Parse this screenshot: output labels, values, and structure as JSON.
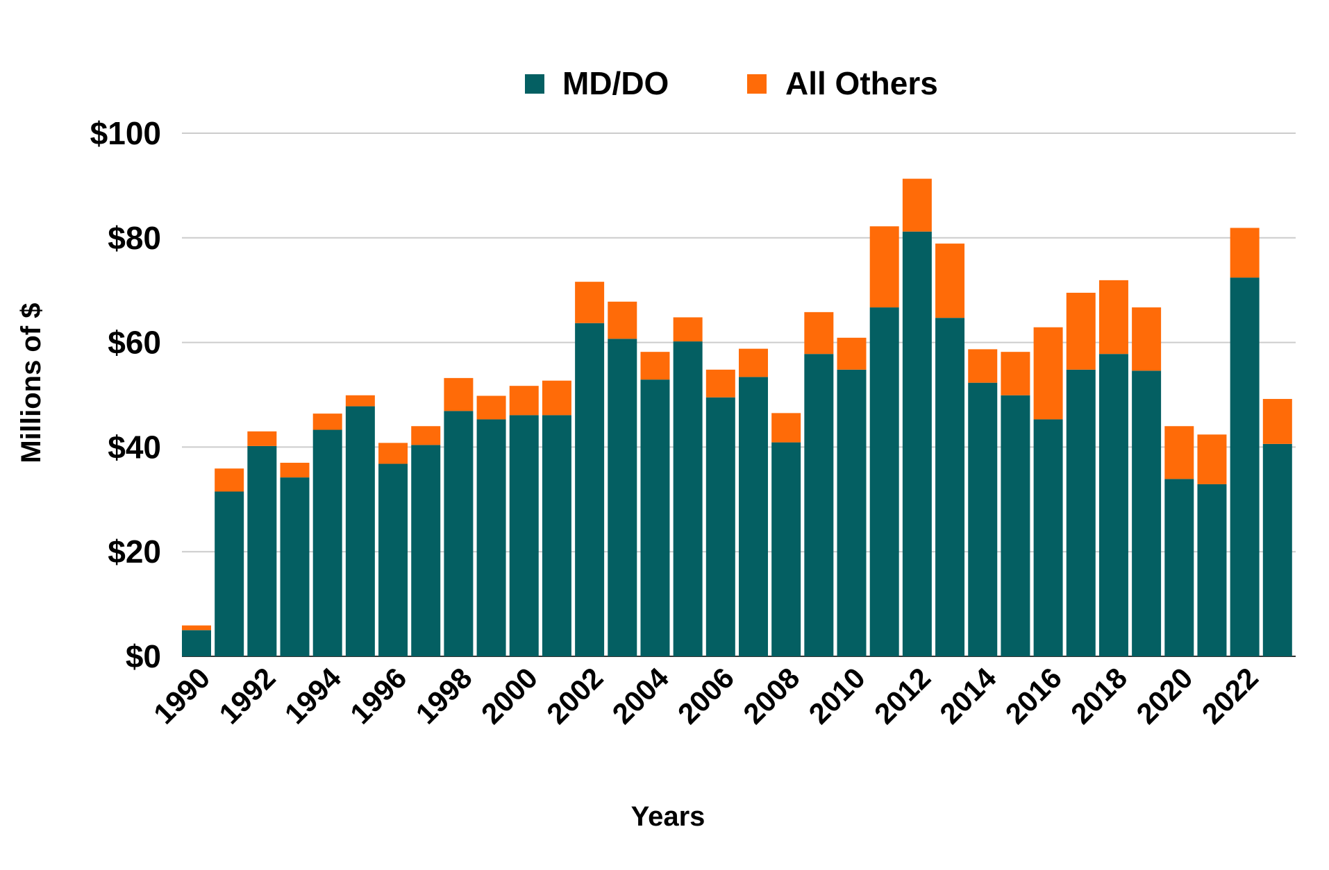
{
  "chart_data": {
    "type": "bar",
    "stacked": true,
    "title": "",
    "xlabel": "Years",
    "ylabel": "Millions of $",
    "ylim": [
      0,
      100
    ],
    "yticks": [
      "$0",
      "$20",
      "$40",
      "$60",
      "$80",
      "$100"
    ],
    "ytick_values": [
      0,
      20,
      40,
      60,
      80,
      100
    ],
    "grid": true,
    "legend_position": "top-center",
    "categories": [
      1990,
      1991,
      1992,
      1993,
      1994,
      1995,
      1996,
      1997,
      1998,
      1999,
      2000,
      2001,
      2002,
      2003,
      2004,
      2005,
      2006,
      2007,
      2008,
      2009,
      2010,
      2011,
      2012,
      2013,
      2014,
      2015,
      2016,
      2017,
      2018,
      2019,
      2020,
      2021,
      2022,
      2023
    ],
    "xtick_labels": [
      "1990",
      "1992",
      "1994",
      "1996",
      "1998",
      "2000",
      "2002",
      "2004",
      "2006",
      "2008",
      "2010",
      "2012",
      "2014",
      "2016",
      "2018",
      "2020",
      "2022"
    ],
    "series": [
      {
        "name": "MD/DO",
        "color": "#045F62",
        "values": [
          5.0,
          31.5,
          40.2,
          34.2,
          43.3,
          47.8,
          36.8,
          40.4,
          46.9,
          45.3,
          46.1,
          46.1,
          63.7,
          60.7,
          52.9,
          60.2,
          49.5,
          53.4,
          40.9,
          57.8,
          54.8,
          66.7,
          81.2,
          64.7,
          52.3,
          49.9,
          45.3,
          54.8,
          57.8,
          54.6,
          33.9,
          32.9,
          72.4,
          40.6
        ]
      },
      {
        "name": "All Others",
        "color": "#FF6B08",
        "values": [
          0.9,
          4.4,
          2.8,
          2.8,
          3.1,
          2.1,
          4.0,
          3.6,
          6.3,
          4.5,
          5.6,
          6.6,
          7.9,
          7.1,
          5.3,
          4.6,
          5.3,
          5.4,
          5.6,
          8.0,
          6.1,
          15.5,
          10.1,
          14.2,
          6.4,
          8.3,
          17.6,
          14.7,
          14.1,
          12.1,
          10.1,
          9.5,
          9.5,
          8.6
        ]
      }
    ]
  }
}
